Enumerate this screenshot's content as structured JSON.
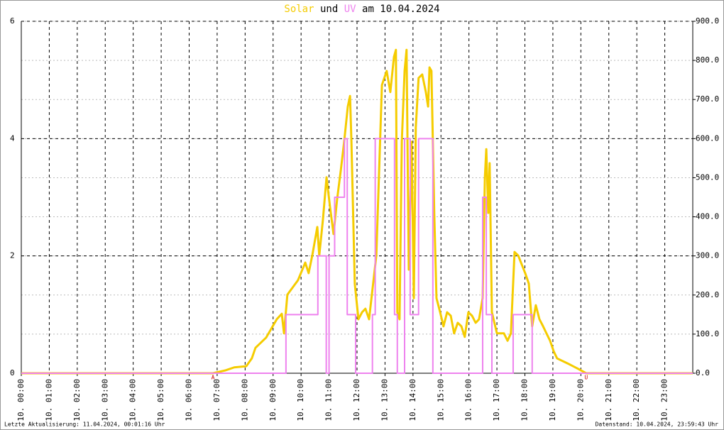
{
  "chart_data": {
    "type": "line",
    "title": [
      "Solar",
      "und",
      "UV",
      "am 10.04.2024"
    ],
    "xlim": [
      0,
      24
    ],
    "xticks": [
      {
        "value": 0,
        "label": "10. 00:00"
      },
      {
        "value": 1,
        "label": "10. 01:00"
      },
      {
        "value": 2,
        "label": "10. 02:00"
      },
      {
        "value": 3,
        "label": "10. 03:00"
      },
      {
        "value": 4,
        "label": "10. 04:00"
      },
      {
        "value": 5,
        "label": "10. 05:00"
      },
      {
        "value": 6,
        "label": "10. 06:00"
      },
      {
        "value": 7,
        "label": "10. 07:00"
      },
      {
        "value": 8,
        "label": "10. 08:00"
      },
      {
        "value": 9,
        "label": "10. 09:00"
      },
      {
        "value": 10,
        "label": "10. 10:00"
      },
      {
        "value": 11,
        "label": "10. 11:00"
      },
      {
        "value": 12,
        "label": "10. 12:00"
      },
      {
        "value": 13,
        "label": "10. 13:00"
      },
      {
        "value": 14,
        "label": "10. 14:00"
      },
      {
        "value": 15,
        "label": "10. 15:00"
      },
      {
        "value": 16,
        "label": "10. 16:00"
      },
      {
        "value": 17,
        "label": "10. 17:00"
      },
      {
        "value": 18,
        "label": "10. 18:00"
      },
      {
        "value": 19,
        "label": "10. 19:00"
      },
      {
        "value": 20,
        "label": "10. 20:00"
      },
      {
        "value": 21,
        "label": "10. 21:00"
      },
      {
        "value": 22,
        "label": "10. 22:00"
      },
      {
        "value": 23,
        "label": "10. 23:00"
      }
    ],
    "ylim": [
      0,
      6
    ],
    "yticks": [
      0,
      2,
      4,
      6
    ],
    "y2lim": [
      0,
      900
    ],
    "y2ticks": [
      {
        "value": 0,
        "label": "0.0"
      },
      {
        "value": 100,
        "label": "100.0"
      },
      {
        "value": 200,
        "label": "200.0"
      },
      {
        "value": 300,
        "label": "300.0"
      },
      {
        "value": 400,
        "label": "400.0"
      },
      {
        "value": 500,
        "label": "500.0"
      },
      {
        "value": 600,
        "label": "600.0"
      },
      {
        "value": 700,
        "label": "700.0"
      },
      {
        "value": 800,
        "label": "800.0"
      },
      {
        "value": 900,
        "label": "900.0"
      }
    ],
    "grid": true,
    "series": [
      {
        "name": "Solar",
        "color": "#f5cc00",
        "axis": "y2",
        "x": [
          0,
          6.85,
          7.28,
          7.61,
          8.04,
          8.24,
          8.37,
          8.75,
          9.13,
          9.31,
          9.39,
          9.51,
          9.89,
          10.15,
          10.27,
          10.4,
          10.58,
          10.65,
          10.78,
          10.91,
          11.03,
          11.16,
          11.29,
          11.42,
          11.54,
          11.67,
          11.75,
          11.8,
          11.92,
          12.05,
          12.18,
          12.3,
          12.43,
          12.69,
          12.89,
          13.06,
          13.19,
          13.32,
          13.39,
          13.44,
          13.52,
          13.6,
          13.7,
          13.77,
          13.85,
          13.95,
          14.03,
          14.1,
          14.2,
          14.33,
          14.46,
          14.54,
          14.59,
          14.66,
          14.76,
          14.84,
          14.97,
          15.09,
          15.22,
          15.35,
          15.47,
          15.6,
          15.73,
          15.85,
          15.98,
          16.11,
          16.24,
          16.36,
          16.49,
          16.57,
          16.62,
          16.69,
          16.74,
          16.82,
          17,
          17.25,
          17.38,
          17.5,
          17.63,
          17.76,
          18.01,
          18.14,
          18.26,
          18.39,
          18.52,
          18.65,
          18.77,
          18.9,
          19.03,
          19.15,
          19.53,
          19.91,
          20.19,
          24
        ],
        "values": [
          0,
          0,
          7,
          15,
          18,
          38,
          65,
          91,
          138,
          152,
          102,
          201,
          238,
          283,
          256,
          301,
          374,
          301,
          392,
          501,
          428,
          356,
          446,
          519,
          592,
          682,
          709,
          592,
          229,
          138,
          156,
          165,
          138,
          301,
          737,
          773,
          719,
          809,
          827,
          156,
          138,
          592,
          773,
          827,
          265,
          592,
          192,
          628,
          755,
          764,
          719,
          682,
          782,
          773,
          410,
          192,
          156,
          120,
          156,
          147,
          102,
          129,
          120,
          93,
          156,
          147,
          129,
          138,
          192,
          501,
          573,
          410,
          537,
          156,
          102,
          102,
          83,
          102,
          310,
          301,
          256,
          229,
          120,
          174,
          138,
          120,
          102,
          83,
          56,
          38,
          25,
          11,
          0,
          0
        ]
      },
      {
        "name": "UV",
        "color": "#ee82ee",
        "step": true,
        "x": [
          0,
          9.46,
          10.6,
          10.9,
          11,
          11.2,
          11.55,
          11.65,
          11.95,
          12.55,
          12.65,
          13.34,
          13.44,
          13.7,
          13.9,
          14.2,
          14.71,
          16.49,
          16.62,
          16.82,
          17.58,
          18.26,
          24
        ],
        "values": [
          0,
          1,
          2,
          0,
          2,
          3,
          4,
          1,
          0,
          1,
          4,
          1,
          0,
          4,
          1,
          4,
          0,
          3,
          1,
          0,
          1,
          0,
          0
        ]
      }
    ],
    "annotations": [
      {
        "x": 6.85,
        "text": "A",
        "color": "#cc0000"
      },
      {
        "x": 20.19,
        "text": "U",
        "color": "#cc0000"
      }
    ],
    "footer": {
      "left": "Letzte Aktualisierung: 11.04.2024, 00:01:16 Uhr",
      "right": "Datenstand: 10.04.2024, 23:59:43 Uhr"
    }
  }
}
